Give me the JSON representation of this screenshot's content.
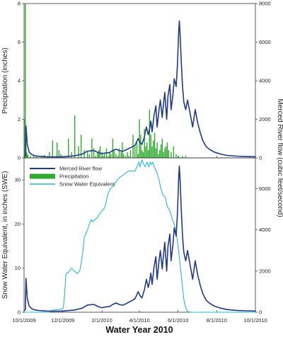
{
  "chart_data": {
    "type": "line",
    "title": "",
    "xlabel": "Water Year 2010",
    "x_ticks": [
      "10/1/2009",
      "12/1/2009",
      "2/1/2010",
      "4/1/2010",
      "6/1/2010",
      "8/1/2010",
      "10/1/2010"
    ],
    "x_tick_days": [
      0,
      61,
      123,
      182,
      243,
      304,
      365
    ],
    "panels": [
      {
        "name": "top",
        "left_axis": {
          "label": "Precipitation (inches)",
          "range": [
            0,
            8
          ],
          "ticks": [
            0,
            2,
            4,
            6,
            8
          ]
        },
        "right_axis": {
          "label": "",
          "range": [
            0,
            8000
          ],
          "ticks": [
            0,
            2000,
            4000,
            6000,
            8000
          ]
        }
      },
      {
        "name": "bottom",
        "left_axis": {
          "label": "Snow Water Equivalent, in inches (SWE)",
          "range": [
            0,
            35
          ],
          "ticks": [
            0,
            10,
            20,
            30
          ]
        },
        "right_axis": {
          "label": "",
          "range": [
            0,
            7500
          ],
          "ticks": [
            0,
            2000,
            4000,
            6000
          ]
        }
      }
    ],
    "right_axis_label": "Merced River flow (cubic feet/second)",
    "legend": {
      "placement": "top-left of bottom panel",
      "items": [
        {
          "label": "Merced River flow",
          "kind": "line",
          "color": "#1f3a8a"
        },
        {
          "label": "Precipitation",
          "kind": "bar",
          "color": "#2eaa2e"
        },
        {
          "label": "Snow Water Equivalent",
          "kind": "line",
          "color": "#26b8d8"
        }
      ]
    },
    "series": [
      {
        "name": "Merced River flow",
        "axis": "right",
        "color": "#1f3a8a",
        "x_day": [
          0,
          2,
          3,
          5,
          8,
          12,
          18,
          25,
          35,
          45,
          55,
          62,
          70,
          80,
          92,
          100,
          110,
          118,
          123,
          128,
          135,
          140,
          145,
          150,
          155,
          160,
          165,
          170,
          175,
          180,
          183,
          186,
          190,
          193,
          196,
          198,
          200,
          202,
          205,
          208,
          210,
          213,
          215,
          218,
          220,
          222,
          225,
          227,
          230,
          232,
          235,
          237,
          240,
          242,
          244,
          245,
          246,
          247,
          248,
          250,
          252,
          255,
          258,
          262,
          266,
          270,
          274,
          278,
          282,
          287,
          292,
          300,
          310,
          320,
          335,
          350,
          365
        ],
        "y": [
          80,
          120,
          1650,
          700,
          300,
          180,
          100,
          80,
          60,
          50,
          50,
          60,
          80,
          110,
          200,
          350,
          380,
          260,
          220,
          250,
          280,
          380,
          450,
          380,
          340,
          400,
          480,
          560,
          650,
          1000,
          800,
          700,
          1100,
          1600,
          1200,
          1500,
          1900,
          1350,
          2200,
          2700,
          1600,
          2500,
          3000,
          2100,
          2800,
          3400,
          2000,
          3200,
          3800,
          2500,
          3300,
          4100,
          3700,
          4800,
          6600,
          7100,
          6500,
          5800,
          5000,
          3700,
          2900,
          2500,
          3000,
          2300,
          1600,
          2500,
          1800,
          1300,
          900,
          600,
          450,
          300,
          200,
          130,
          90,
          70,
          60
        ]
      },
      {
        "name": "Snow Water Equivalent",
        "axis": "left",
        "color": "#26b8d8",
        "x_day": [
          0,
          40,
          45,
          55,
          60,
          62,
          64,
          66,
          68,
          70,
          72,
          75,
          78,
          82,
          84,
          86,
          88,
          90,
          93,
          95,
          98,
          101,
          103,
          106,
          108,
          112,
          116,
          118,
          120,
          123,
          126,
          128,
          131,
          133,
          136,
          140,
          143,
          147,
          150,
          155,
          160,
          165,
          170,
          175,
          178,
          181,
          183,
          186,
          189,
          191,
          194,
          197,
          199,
          201,
          203,
          205,
          207,
          209,
          211,
          213,
          216,
          218,
          220,
          223,
          226,
          230,
          234,
          237,
          240,
          243,
          246,
          249,
          252,
          255,
          258,
          262,
          266,
          365
        ],
        "y": [
          0,
          0,
          0.5,
          0.6,
          0.8,
          1,
          4,
          8.5,
          9,
          9,
          9.5,
          10,
          9.5,
          9,
          8.8,
          9,
          9.5,
          11,
          14,
          17,
          18,
          19,
          20,
          21,
          20.5,
          21,
          21.5,
          22,
          22.5,
          23,
          23.5,
          24,
          26,
          27,
          28,
          28.5,
          29,
          30,
          30.5,
          31,
          31.5,
          32,
          32,
          32,
          33,
          34,
          33,
          34.5,
          33.5,
          33,
          34,
          33,
          34,
          33.5,
          34,
          33,
          32.5,
          32,
          31,
          30,
          28,
          27,
          26.5,
          26,
          24,
          23,
          21,
          20,
          18,
          15,
          11,
          7,
          3,
          1,
          0.2,
          0,
          0,
          0
        ]
      },
      {
        "name": "Precipitation",
        "axis": "left",
        "kind": "bar",
        "color": "#2eaa2e",
        "x_day": [
          1,
          2,
          3,
          4,
          5,
          6,
          10,
          15,
          20,
          28,
          32,
          37,
          40,
          45,
          52,
          55,
          58,
          65,
          70,
          75,
          80,
          86,
          90,
          95,
          100,
          103,
          107,
          110,
          113,
          116,
          118,
          120,
          123,
          125,
          127,
          130,
          133,
          135,
          137,
          140,
          142,
          145,
          148,
          150,
          153,
          155,
          157,
          160,
          163,
          165,
          168,
          172,
          175,
          178,
          180,
          182,
          184,
          186,
          188,
          190,
          192,
          194,
          196,
          198,
          200,
          202,
          204,
          206,
          208,
          210,
          212,
          214,
          216,
          218,
          220,
          222,
          224,
          226,
          228,
          232,
          236,
          240,
          244,
          250,
          255
        ],
        "y": [
          2.0,
          8.0,
          1.0,
          0.3,
          0.1,
          0.2,
          0.1,
          0.15,
          0.1,
          0.1,
          0.15,
          0.1,
          0.3,
          0.9,
          0.8,
          0.4,
          0.2,
          0.1,
          1.0,
          0.3,
          2.2,
          0.6,
          1.2,
          0.4,
          0.3,
          0.2,
          1.0,
          0.5,
          0.1,
          0.3,
          0.4,
          0.6,
          0.3,
          0.1,
          0.2,
          0.5,
          0.1,
          0.3,
          0.2,
          1.0,
          0.4,
          0.2,
          0.1,
          0.5,
          0.3,
          0.8,
          0.2,
          0.1,
          0.3,
          0.1,
          0.4,
          1.2,
          0.6,
          0.8,
          0.2,
          2.0,
          1.2,
          0.4,
          0.3,
          1.5,
          0.6,
          0.8,
          0.4,
          2.5,
          1.2,
          0.6,
          0.9,
          1.3,
          0.5,
          0.8,
          0.2,
          0.4,
          0.7,
          1.0,
          0.3,
          0.5,
          0.6,
          0.8,
          0.4,
          0.3,
          0.6,
          0.2,
          0.1,
          0.1,
          0.1
        ]
      },
      {
        "name": "Merced River flow (bottom panel)",
        "axis": "right",
        "color": "#1f3a8a",
        "same_as": "Merced River flow"
      }
    ]
  }
}
